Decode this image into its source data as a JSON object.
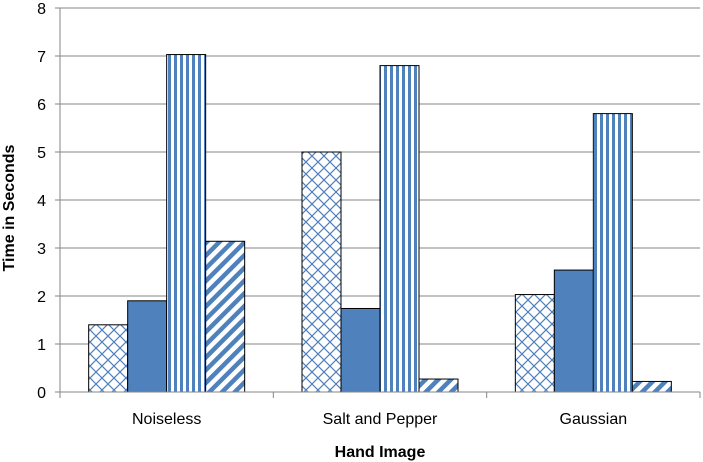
{
  "chart_data": {
    "type": "bar",
    "title": "",
    "xlabel": "Hand Image",
    "ylabel": "Time in Seconds",
    "categories": [
      "Noiseless",
      "Salt and Pepper",
      "Gaussian"
    ],
    "ylim": [
      0,
      8
    ],
    "yticks": [
      "0",
      "1",
      "2",
      "3",
      "4",
      "5",
      "6",
      "7",
      "8"
    ],
    "grid": true,
    "legend": "none",
    "series": [
      {
        "values": [
          1.4,
          5.0,
          2.03
        ],
        "pattern": "crosshatch",
        "color": "#4f81bd"
      },
      {
        "values": [
          1.9,
          1.74,
          2.54
        ],
        "pattern": "solid",
        "color": "#4f81bd"
      },
      {
        "values": [
          7.03,
          6.8,
          5.8
        ],
        "pattern": "vertical-stripes",
        "color": "#4f81bd"
      },
      {
        "values": [
          3.14,
          0.27,
          0.22
        ],
        "pattern": "diagonal-stripes",
        "color": "#4f81bd"
      }
    ]
  }
}
